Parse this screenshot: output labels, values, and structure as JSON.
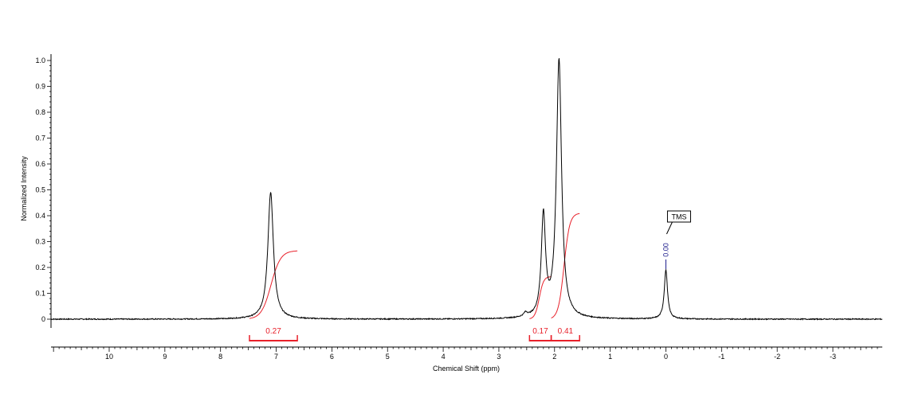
{
  "chart_data": {
    "type": "line",
    "title": "",
    "xlabel": "Chemical Shift (ppm)",
    "ylabel": "Normalized Intensity",
    "x_reversed": true,
    "xlim": [
      11.0,
      -3.9
    ],
    "ylim": [
      -0.1,
      1.0
    ],
    "x_ticks": [
      10,
      9,
      8,
      7,
      6,
      5,
      4,
      3,
      2,
      1,
      0,
      -1,
      -2,
      -3
    ],
    "x_tick_labels": [
      "10",
      "9",
      "8",
      "7",
      "6",
      "5",
      "4",
      "3",
      "2",
      "1",
      "0",
      "-1",
      "-2",
      "-3"
    ],
    "y_ticks": [
      0,
      0.1,
      0.2,
      0.3,
      0.4,
      0.5,
      0.6,
      0.7,
      0.8,
      0.9,
      1.0
    ],
    "y_tick_labels": [
      "0",
      "0.1",
      "0.2",
      "0.3",
      "0.4",
      "0.5",
      "0.6",
      "0.7",
      "0.8",
      "0.9",
      "1.0"
    ],
    "grid": false,
    "peaks": [
      {
        "shift": 7.1,
        "height": 0.49,
        "width": 0.12
      },
      {
        "shift": 2.2,
        "height": 0.39,
        "width": 0.09
      },
      {
        "shift": 1.92,
        "height": 1.0,
        "width": 0.11
      },
      {
        "shift": 0.0,
        "height": 0.19,
        "width": 0.07
      },
      {
        "shift": 2.52,
        "height": 0.015,
        "width": 0.08
      }
    ],
    "spectrum_color": "#000000",
    "integral_color": "#e8202a",
    "integrals": [
      {
        "label": "0.27",
        "from": 7.48,
        "to": 6.62,
        "curve_start": 0.0,
        "curve_end": 0.265
      },
      {
        "label": "0.17",
        "from": 2.45,
        "to": 2.06,
        "curve_start": 0.0,
        "curve_end": 0.165
      },
      {
        "label": "0.41",
        "from": 2.06,
        "to": 1.55,
        "curve_start": 0.0,
        "curve_end": 0.41
      }
    ],
    "peak_labels": [
      {
        "label": "0.00",
        "shift": 0.0,
        "color": "#1c1c8c"
      }
    ],
    "annotations": [
      {
        "text": "TMS",
        "shift": 0.0
      }
    ]
  }
}
